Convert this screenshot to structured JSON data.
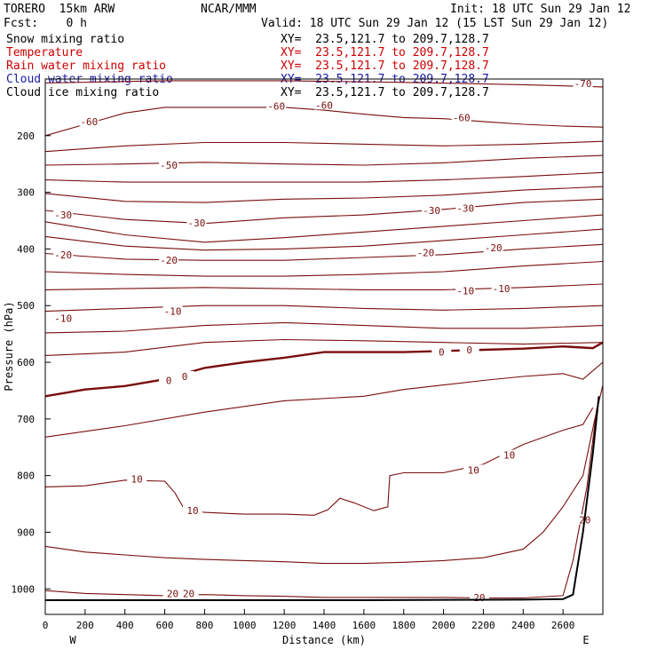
{
  "header": {
    "model": "TORERO  15km ARW",
    "center": "NCAR/MMM",
    "init": "Init: 18 UTC Sun 29 Jan 12",
    "fcst": "Fcst:    0 h",
    "valid": "Valid: 18 UTC Sun 29 Jan 12 (15 LST Sun 29 Jan 12)"
  },
  "fields": [
    {
      "name": "Snow mixing ratio",
      "xy": "XY=  23.5,121.7 to 209.7,128.7",
      "color": "#000000"
    },
    {
      "name": "Temperature",
      "xy": "XY=  23.5,121.7 to 209.7,128.7",
      "color": "#cc0000"
    },
    {
      "name": "Rain water mixing ratio",
      "xy": "XY=  23.5,121.7 to 209.7,128.7",
      "color": "#cc0000"
    },
    {
      "name": "Cloud water mixing ratio",
      "xy": "XY=  23.5,121.7 to 209.7,128.7",
      "color": "#1a1aa0"
    },
    {
      "name": "Cloud ice mixing ratio",
      "xy": "XY=  23.5,121.7 to 209.7,128.7",
      "color": "#000000"
    }
  ],
  "chart_data": {
    "type": "line",
    "title": "",
    "xlabel": "Distance (km)",
    "ylabel": "Pressure (hPa)",
    "x_ticks": [
      0,
      200,
      400,
      600,
      800,
      1000,
      1200,
      1400,
      1600,
      1800,
      2000,
      2200,
      2400,
      2600
    ],
    "y_ticks": [
      200,
      300,
      400,
      500,
      600,
      700,
      800,
      900,
      1000
    ],
    "xlim": [
      0,
      2800
    ],
    "ylim": [
      1045,
      100
    ],
    "x_end_left": "W",
    "x_end_right": "E",
    "contour_color": "#7a0d0d",
    "series": [
      {
        "name": "-70",
        "points": [
          [
            0,
            107
          ],
          [
            600,
            103
          ],
          [
            1200,
            103
          ],
          [
            1800,
            106
          ],
          [
            2400,
            110
          ],
          [
            2800,
            114
          ]
        ]
      },
      {
        "name": "-60",
        "points": [
          [
            0,
            200
          ],
          [
            200,
            180
          ],
          [
            400,
            160
          ],
          [
            600,
            150
          ],
          [
            800,
            150
          ],
          [
            1000,
            150
          ],
          [
            1200,
            150
          ],
          [
            1400,
            155
          ],
          [
            1600,
            162
          ],
          [
            1800,
            168
          ],
          [
            2000,
            170
          ],
          [
            2200,
            175
          ],
          [
            2400,
            180
          ],
          [
            2600,
            183
          ],
          [
            2800,
            185
          ]
        ]
      },
      {
        "name": "",
        "points": [
          [
            0,
            228
          ],
          [
            400,
            218
          ],
          [
            800,
            212
          ],
          [
            1200,
            212
          ],
          [
            1600,
            215
          ],
          [
            2000,
            218
          ],
          [
            2400,
            215
          ],
          [
            2800,
            210
          ]
        ]
      },
      {
        "name": "-50",
        "points": [
          [
            0,
            252
          ],
          [
            400,
            250
          ],
          [
            800,
            247
          ],
          [
            1200,
            250
          ],
          [
            1600,
            252
          ],
          [
            2000,
            248
          ],
          [
            2400,
            240
          ],
          [
            2800,
            235
          ]
        ]
      },
      {
        "name": "",
        "points": [
          [
            0,
            278
          ],
          [
            400,
            282
          ],
          [
            800,
            282
          ],
          [
            1200,
            282
          ],
          [
            1600,
            282
          ],
          [
            2000,
            278
          ],
          [
            2400,
            272
          ],
          [
            2800,
            265
          ]
        ]
      },
      {
        "name": "",
        "points": [
          [
            0,
            302
          ],
          [
            400,
            316
          ],
          [
            800,
            318
          ],
          [
            1200,
            312
          ],
          [
            1600,
            310
          ],
          [
            2000,
            305
          ],
          [
            2400,
            296
          ],
          [
            2800,
            290
          ]
        ]
      },
      {
        "name": "-30",
        "points": [
          [
            0,
            332
          ],
          [
            400,
            348
          ],
          [
            800,
            355
          ],
          [
            1200,
            345
          ],
          [
            1600,
            340
          ],
          [
            2000,
            330
          ],
          [
            2400,
            318
          ],
          [
            2800,
            312
          ]
        ]
      },
      {
        "name": "",
        "points": [
          [
            0,
            352
          ],
          [
            400,
            375
          ],
          [
            800,
            388
          ],
          [
            1200,
            380
          ],
          [
            1600,
            370
          ],
          [
            2000,
            360
          ],
          [
            2400,
            350
          ],
          [
            2800,
            340
          ]
        ]
      },
      {
        "name": "",
        "points": [
          [
            0,
            378
          ],
          [
            400,
            395
          ],
          [
            800,
            402
          ],
          [
            1200,
            400
          ],
          [
            1600,
            395
          ],
          [
            2000,
            385
          ],
          [
            2400,
            375
          ],
          [
            2800,
            365
          ]
        ]
      },
      {
        "name": "-20",
        "points": [
          [
            0,
            408
          ],
          [
            400,
            418
          ],
          [
            800,
            420
          ],
          [
            1200,
            420
          ],
          [
            1600,
            415
          ],
          [
            2000,
            410
          ],
          [
            2400,
            400
          ],
          [
            2800,
            392
          ]
        ]
      },
      {
        "name": "",
        "points": [
          [
            0,
            440
          ],
          [
            400,
            445
          ],
          [
            800,
            448
          ],
          [
            1200,
            448
          ],
          [
            1600,
            445
          ],
          [
            2000,
            440
          ],
          [
            2400,
            430
          ],
          [
            2800,
            422
          ]
        ]
      },
      {
        "name": "-10",
        "points": [
          [
            0,
            472
          ],
          [
            400,
            470
          ],
          [
            800,
            468
          ],
          [
            1200,
            470
          ],
          [
            1600,
            472
          ],
          [
            2000,
            472
          ],
          [
            2400,
            468
          ],
          [
            2800,
            462
          ]
        ]
      },
      {
        "name": "",
        "points": [
          [
            0,
            510
          ],
          [
            400,
            505
          ],
          [
            800,
            500
          ],
          [
            1200,
            500
          ],
          [
            1600,
            505
          ],
          [
            2000,
            508
          ],
          [
            2400,
            505
          ],
          [
            2800,
            500
          ]
        ]
      },
      {
        "name": "",
        "points": [
          [
            0,
            548
          ],
          [
            400,
            545
          ],
          [
            800,
            535
          ],
          [
            1200,
            530
          ],
          [
            1600,
            535
          ],
          [
            2000,
            540
          ],
          [
            2400,
            540
          ],
          [
            2800,
            535
          ]
        ]
      },
      {
        "name": "",
        "points": [
          [
            0,
            588
          ],
          [
            400,
            582
          ],
          [
            800,
            565
          ],
          [
            1200,
            560
          ],
          [
            1600,
            562
          ],
          [
            2000,
            565
          ],
          [
            2400,
            568
          ],
          [
            2800,
            565
          ]
        ]
      },
      {
        "name": "0",
        "points": [
          [
            0,
            660
          ],
          [
            200,
            648
          ],
          [
            400,
            642
          ],
          [
            600,
            630
          ],
          [
            800,
            610
          ],
          [
            1000,
            600
          ],
          [
            1200,
            592
          ],
          [
            1400,
            582
          ],
          [
            1600,
            582
          ],
          [
            1800,
            582
          ],
          [
            2000,
            580
          ],
          [
            2200,
            578
          ],
          [
            2400,
            576
          ],
          [
            2600,
            572
          ],
          [
            2750,
            575
          ],
          [
            2800,
            565
          ]
        ]
      },
      {
        "name": "",
        "points": [
          [
            0,
            732
          ],
          [
            400,
            712
          ],
          [
            800,
            688
          ],
          [
            1200,
            668
          ],
          [
            1600,
            660
          ],
          [
            1800,
            648
          ],
          [
            2000,
            640
          ],
          [
            2200,
            632
          ],
          [
            2400,
            625
          ],
          [
            2600,
            620
          ],
          [
            2700,
            630
          ],
          [
            2750,
            615
          ],
          [
            2800,
            600
          ]
        ]
      },
      {
        "name": "10",
        "points": [
          [
            0,
            820
          ],
          [
            200,
            818
          ],
          [
            400,
            808
          ],
          [
            600,
            810
          ],
          [
            650,
            830
          ],
          [
            700,
            860
          ],
          [
            800,
            865
          ],
          [
            1000,
            868
          ],
          [
            1200,
            868
          ],
          [
            1350,
            870
          ],
          [
            1420,
            860
          ],
          [
            1480,
            840
          ],
          [
            1550,
            848
          ],
          [
            1650,
            862
          ],
          [
            1720,
            855
          ],
          [
            1730,
            800
          ],
          [
            1800,
            795
          ],
          [
            2000,
            795
          ],
          [
            2200,
            780
          ],
          [
            2400,
            745
          ],
          [
            2600,
            720
          ],
          [
            2700,
            710
          ],
          [
            2750,
            680
          ]
        ]
      },
      {
        "name": "",
        "points": [
          [
            0,
            925
          ],
          [
            200,
            935
          ],
          [
            400,
            940
          ],
          [
            600,
            945
          ],
          [
            800,
            948
          ],
          [
            1000,
            950
          ],
          [
            1200,
            952
          ],
          [
            1400,
            955
          ],
          [
            1600,
            955
          ],
          [
            1800,
            953
          ],
          [
            2000,
            950
          ],
          [
            2200,
            945
          ],
          [
            2400,
            930
          ],
          [
            2500,
            900
          ],
          [
            2600,
            855
          ],
          [
            2700,
            800
          ],
          [
            2760,
            700
          ],
          [
            2800,
            640
          ]
        ]
      },
      {
        "name": "20",
        "points": [
          [
            0,
            1003
          ],
          [
            200,
            1008
          ],
          [
            400,
            1010
          ],
          [
            600,
            1012
          ],
          [
            800,
            1010
          ],
          [
            1000,
            1012
          ],
          [
            1200,
            1013
          ],
          [
            1400,
            1015
          ],
          [
            1600,
            1015
          ],
          [
            1800,
            1015
          ],
          [
            2000,
            1015
          ],
          [
            2200,
            1016
          ],
          [
            2400,
            1016
          ],
          [
            2600,
            1012
          ],
          [
            2650,
            950
          ],
          [
            2720,
            820
          ],
          [
            2770,
            680
          ]
        ]
      }
    ],
    "contour_labels": [
      {
        "text": "-70",
        "x": 2700,
        "y": 108
      },
      {
        "text": "-60",
        "x": 220,
        "y": 175
      },
      {
        "text": "-60",
        "x": 1160,
        "y": 148
      },
      {
        "text": "-60",
        "x": 1400,
        "y": 146
      },
      {
        "text": "-60",
        "x": 2090,
        "y": 168
      },
      {
        "text": "-50",
        "x": 620,
        "y": 252
      },
      {
        "text": "-30",
        "x": 90,
        "y": 340
      },
      {
        "text": "-30",
        "x": 760,
        "y": 354
      },
      {
        "text": "-30",
        "x": 1940,
        "y": 332
      },
      {
        "text": "-30",
        "x": 2110,
        "y": 328
      },
      {
        "text": "-20",
        "x": 90,
        "y": 410
      },
      {
        "text": "-20",
        "x": 620,
        "y": 420
      },
      {
        "text": "-20",
        "x": 1910,
        "y": 406
      },
      {
        "text": "-20",
        "x": 2250,
        "y": 398
      },
      {
        "text": "-10",
        "x": 90,
        "y": 522
      },
      {
        "text": "-10",
        "x": 640,
        "y": 510
      },
      {
        "text": "-10",
        "x": 2110,
        "y": 474
      },
      {
        "text": "-10",
        "x": 2290,
        "y": 470
      },
      {
        "text": "0",
        "x": 620,
        "y": 632
      },
      {
        "text": "0",
        "x": 700,
        "y": 625
      },
      {
        "text": "0",
        "x": 1990,
        "y": 582
      },
      {
        "text": "0",
        "x": 2130,
        "y": 578
      },
      {
        "text": "10",
        "x": 460,
        "y": 806
      },
      {
        "text": "10",
        "x": 740,
        "y": 862
      },
      {
        "text": "10",
        "x": 2150,
        "y": 790
      },
      {
        "text": "10",
        "x": 2330,
        "y": 764
      },
      {
        "text": "20",
        "x": 640,
        "y": 1008
      },
      {
        "text": "20",
        "x": 720,
        "y": 1008
      },
      {
        "text": "20",
        "x": 2180,
        "y": 1015
      },
      {
        "text": "20",
        "x": 2710,
        "y": 878
      }
    ],
    "terrain": {
      "name": "",
      "color": "#000000",
      "points": [
        [
          0,
          1020
        ],
        [
          800,
          1020
        ],
        [
          1600,
          1020
        ],
        [
          2400,
          1019
        ],
        [
          2600,
          1018
        ],
        [
          2650,
          1010
        ],
        [
          2700,
          900
        ],
        [
          2750,
          760
        ],
        [
          2780,
          660
        ]
      ]
    }
  }
}
